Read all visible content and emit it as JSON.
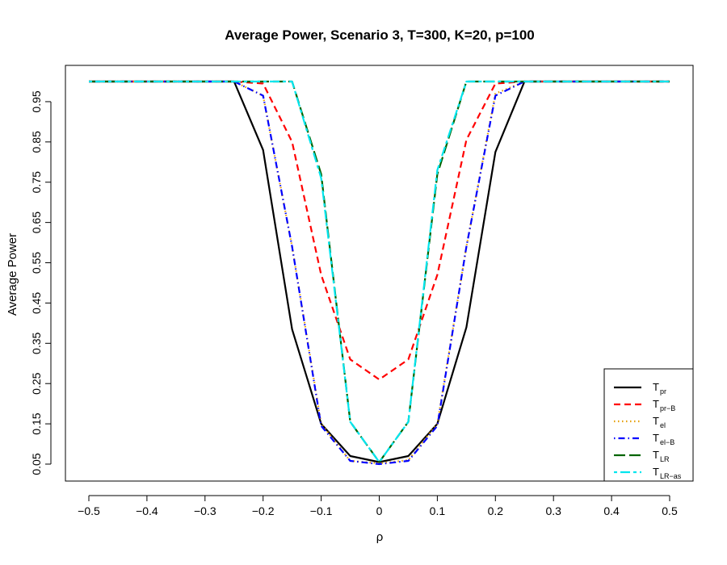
{
  "chart_data": {
    "type": "line",
    "title": "Average Power, Scenario 3, T=300, K=20, p=100",
    "xlabel": "ρ",
    "ylabel": "Average Power",
    "xlim": [
      -0.5,
      0.5
    ],
    "ylim": [
      0.05,
      1.0
    ],
    "x_ticks": [
      -0.5,
      -0.4,
      -0.3,
      -0.2,
      -0.1,
      0,
      0.1,
      0.2,
      0.3,
      0.4,
      0.5
    ],
    "x_tick_labels": [
      "−0.5",
      "−0.4",
      "−0.3",
      "−0.2",
      "−0.1",
      "0",
      "0.1",
      "0.2",
      "0.3",
      "0.4",
      "0.5"
    ],
    "y_ticks": [
      0.05,
      0.15,
      0.25,
      0.35,
      0.45,
      0.55,
      0.65,
      0.75,
      0.85,
      0.95
    ],
    "y_tick_labels": [
      "0.05",
      "0.15",
      "0.25",
      "0.35",
      "0.45",
      "0.55",
      "0.65",
      "0.75",
      "0.85",
      "0.95"
    ],
    "grid": false,
    "legend_position": "bottom-right",
    "x": [
      -0.5,
      -0.45,
      -0.4,
      -0.35,
      -0.3,
      -0.25,
      -0.2,
      -0.15,
      -0.1,
      -0.05,
      0,
      0.05,
      0.1,
      0.15,
      0.2,
      0.25,
      0.3,
      0.35,
      0.4,
      0.45,
      0.5
    ],
    "series": [
      {
        "name": "T",
        "sub": "pr",
        "color": "#000000",
        "dash": "solid",
        "values": [
          1.0,
          1.0,
          1.0,
          1.0,
          1.0,
          1.0,
          0.83,
          0.385,
          0.15,
          0.07,
          0.055,
          0.07,
          0.15,
          0.39,
          0.825,
          1.0,
          1.0,
          1.0,
          1.0,
          1.0,
          1.0
        ]
      },
      {
        "name": "T",
        "sub": "pr−B",
        "color": "#ff0000",
        "dash": "dashed",
        "values": [
          1.0,
          1.0,
          1.0,
          1.0,
          1.0,
          1.0,
          0.995,
          0.85,
          0.52,
          0.31,
          0.26,
          0.31,
          0.52,
          0.855,
          0.995,
          1.0,
          1.0,
          1.0,
          1.0,
          1.0,
          1.0
        ]
      },
      {
        "name": "T",
        "sub": "el",
        "color": "#e69f00",
        "dash": "dotted",
        "values": [
          1.0,
          1.0,
          1.0,
          1.0,
          1.0,
          1.0,
          0.965,
          0.59,
          0.15,
          0.058,
          0.052,
          0.06,
          0.15,
          0.59,
          0.97,
          1.0,
          1.0,
          1.0,
          1.0,
          1.0,
          1.0
        ]
      },
      {
        "name": "T",
        "sub": "el−B",
        "color": "#0000ff",
        "dash": "dotdash",
        "values": [
          1.0,
          1.0,
          1.0,
          1.0,
          1.0,
          1.0,
          0.965,
          0.59,
          0.145,
          0.058,
          0.05,
          0.058,
          0.145,
          0.59,
          0.965,
          1.0,
          1.0,
          1.0,
          1.0,
          1.0,
          1.0
        ]
      },
      {
        "name": "T",
        "sub": "LR",
        "color": "#006400",
        "dash": "longdash",
        "values": [
          1.0,
          1.0,
          1.0,
          1.0,
          1.0,
          1.0,
          1.0,
          1.0,
          0.77,
          0.155,
          0.055,
          0.155,
          0.77,
          1.0,
          1.0,
          1.0,
          1.0,
          1.0,
          1.0,
          1.0,
          1.0
        ]
      },
      {
        "name": "T",
        "sub": "LR−as",
        "color": "#00e5ee",
        "dash": "twodash",
        "values": [
          1.0,
          1.0,
          1.0,
          1.0,
          1.0,
          1.0,
          1.0,
          1.0,
          0.76,
          0.155,
          0.055,
          0.155,
          0.78,
          1.0,
          1.0,
          1.0,
          1.0,
          1.0,
          1.0,
          1.0,
          1.0
        ]
      }
    ]
  }
}
